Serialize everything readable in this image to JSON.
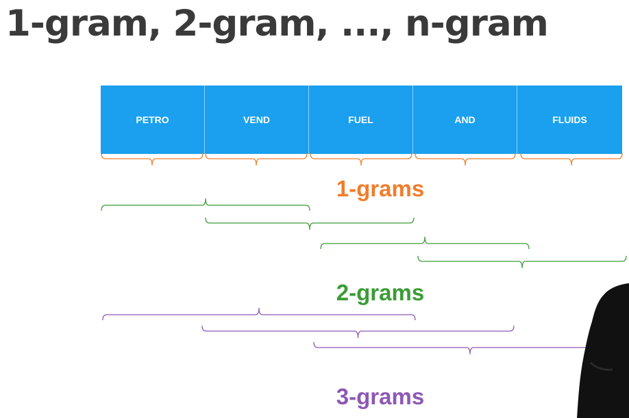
{
  "title": "1-gram, 2-gram, ..., n-gram",
  "tokens": [
    "PETRO",
    "VEND",
    "FUEL",
    "AND",
    "FLUIDS"
  ],
  "labels": {
    "one": "1-grams",
    "two": "2-grams",
    "three": "3-grams"
  },
  "colors": {
    "token_bg": "#1aa0ee",
    "one_gram": "#f07d2b",
    "two_gram": "#3a9c35",
    "three_gram": "#8e58b6",
    "title": "#3a3a3a"
  }
}
